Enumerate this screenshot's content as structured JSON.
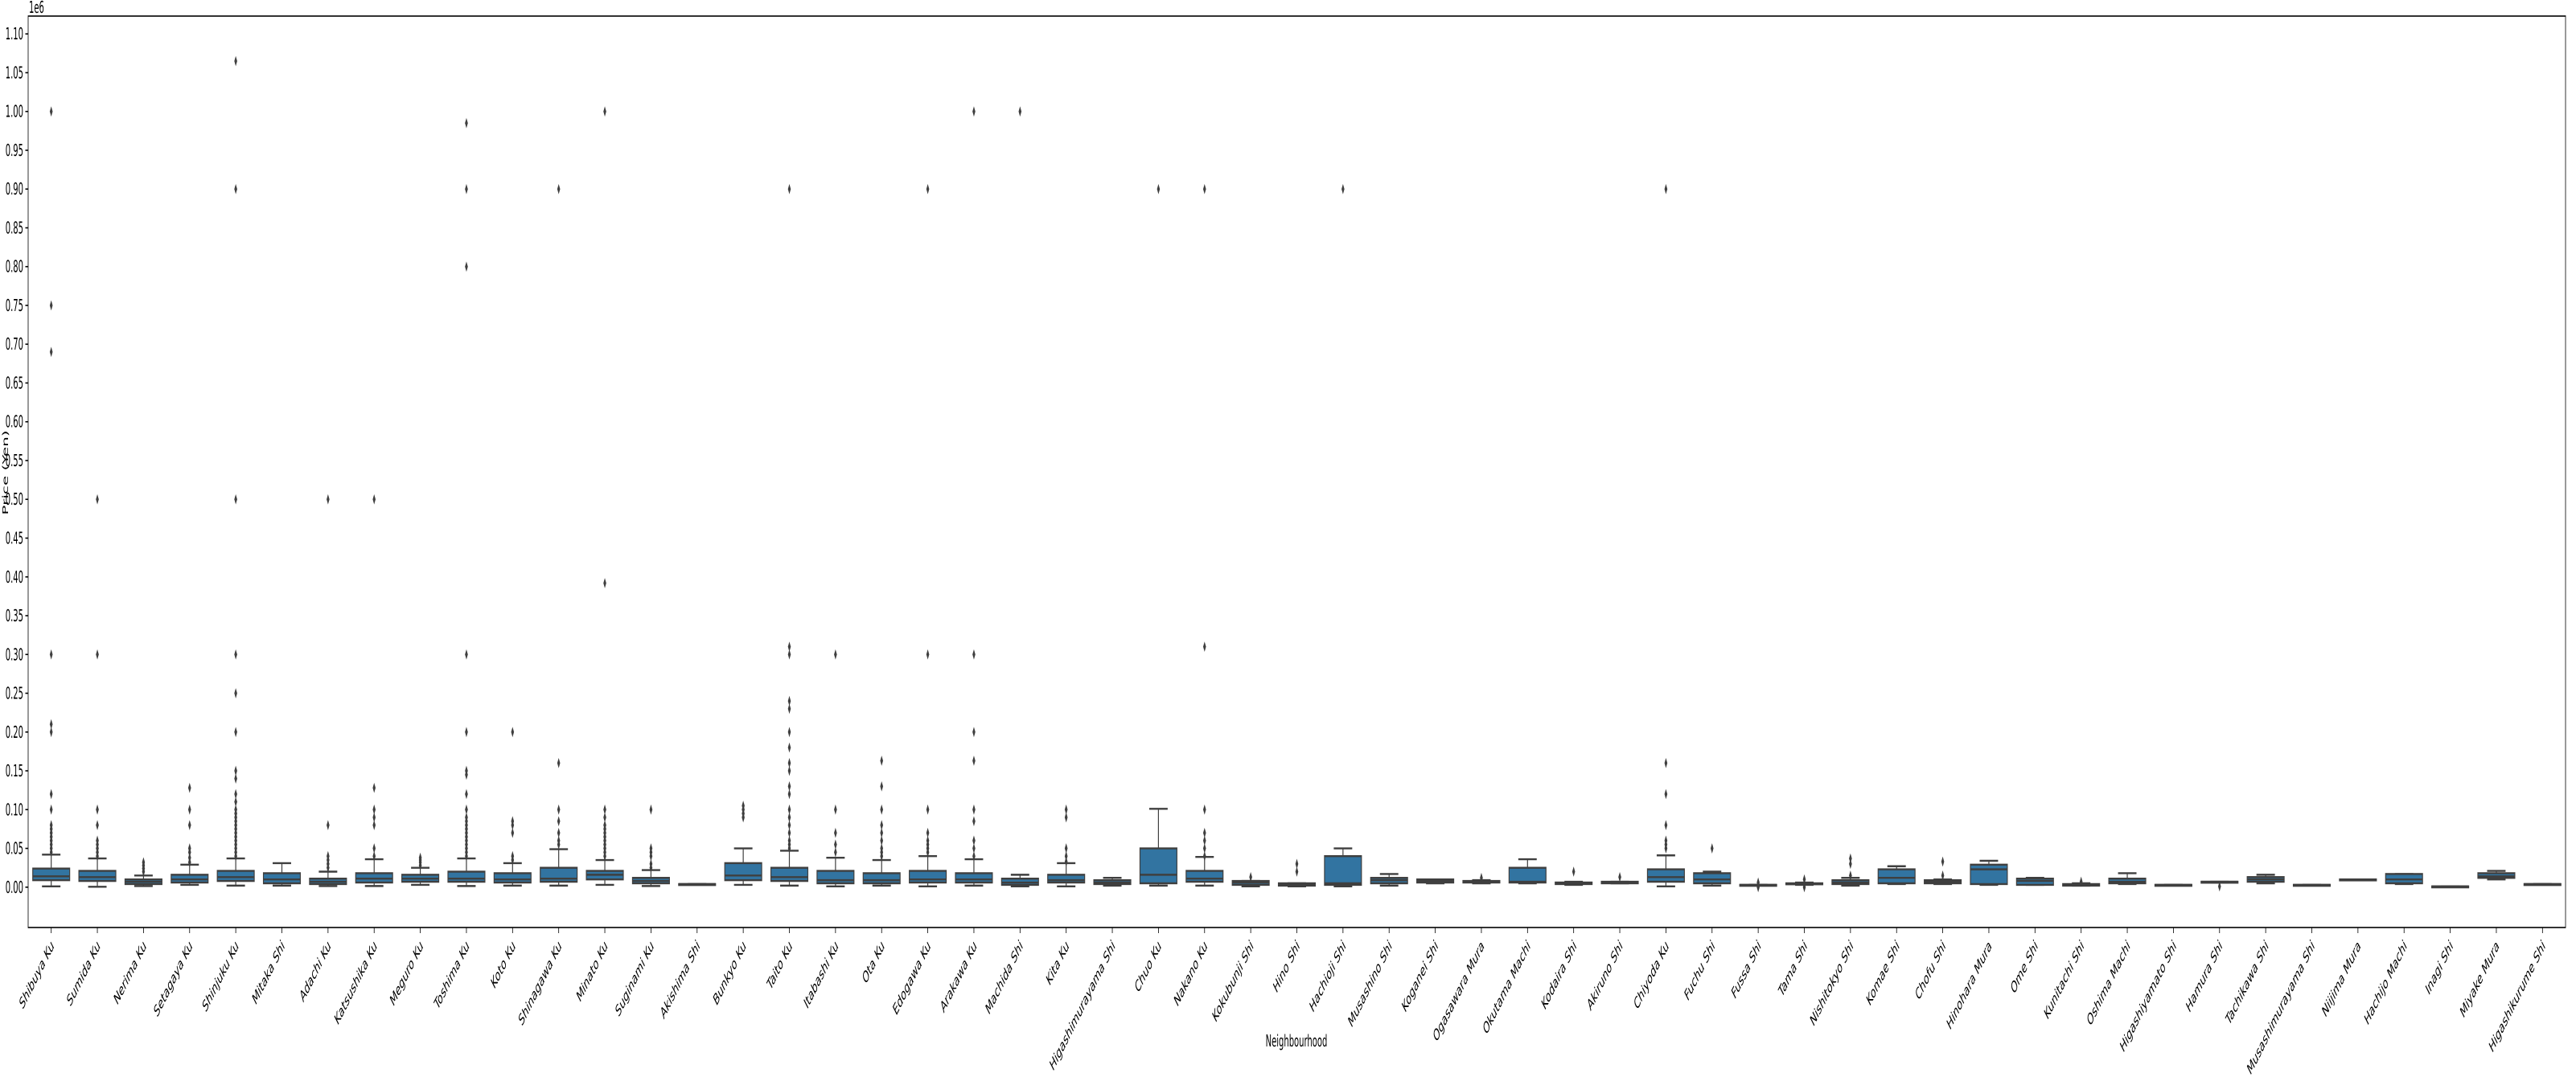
{
  "chart_data": {
    "type": "boxplot",
    "title": "",
    "xlabel": "Neighbourhood",
    "ylabel": "Price (Yen)",
    "y_offset_label": "1e6",
    "ylim": [
      -52000,
      1123000
    ],
    "yticks": [
      0,
      50000,
      100000,
      150000,
      200000,
      250000,
      300000,
      350000,
      400000,
      450000,
      500000,
      550000,
      600000,
      650000,
      700000,
      750000,
      800000,
      850000,
      900000,
      950000,
      1000000,
      1050000,
      1100000
    ],
    "ytick_labels": [
      "0.00",
      "0.05",
      "0.10",
      "0.15",
      "0.20",
      "0.25",
      "0.30",
      "0.35",
      "0.40",
      "0.45",
      "0.50",
      "0.55",
      "0.60",
      "0.65",
      "0.70",
      "0.75",
      "0.80",
      "0.85",
      "0.90",
      "0.95",
      "1.00",
      "1.05",
      "1.10"
    ],
    "grid": false,
    "colors": {
      "box": "#3274a1",
      "edge": "#3f3f3f"
    },
    "categories": [
      "Shibuya Ku",
      "Sumida Ku",
      "Nerima Ku",
      "Setagaya Ku",
      "Shinjuku Ku",
      "Mitaka Shi",
      "Adachi Ku",
      "Katsushika Ku",
      "Meguro Ku",
      "Toshima Ku",
      "Koto Ku",
      "Shinagawa Ku",
      "Minato Ku",
      "Suginami Ku",
      "Akishima Shi",
      "Bunkyo Ku",
      "Taito Ku",
      "Itabashi Ku",
      "Ota Ku",
      "Edogawa Ku",
      "Arakawa Ku",
      "Machida Shi",
      "Kita Ku",
      "Higashimurayama Shi",
      "Chuo Ku",
      "Nakano Ku",
      "Kokubunji Shi",
      "Hino Shi",
      "Hachioji Shi",
      "Musashino Shi",
      "Koganei Shi",
      "Ogasawara Mura",
      "Okutama Machi",
      "Kodaira Shi",
      "Akiruno Shi",
      "Chiyoda Ku",
      "Fuchu Shi",
      "Fussa Shi",
      "Tama Shi",
      "Nishitokyo Shi",
      "Komae Shi",
      "Chofu Shi",
      "Hinohara Mura",
      "Ome Shi",
      "Kunitachi Shi",
      "Oshima Machi",
      "Higashiyamato Shi",
      "Hamura Shi",
      "Tachikawa Shi",
      "Musashimurayama Shi",
      "Niijima Mura",
      "Hachijo Machi",
      "Inagi Shi",
      "Miyake Mura",
      "Higashikurume Shi"
    ],
    "boxes": [
      {
        "low": 1000,
        "q1": 9000,
        "median": 14000,
        "q3": 24000,
        "high": 42000,
        "outliers": [
          45000,
          50000,
          55000,
          60000,
          65000,
          70000,
          75000,
          80000,
          100000,
          120000,
          200000,
          210000,
          300000,
          690000,
          750000,
          1000000
        ]
      },
      {
        "low": 500,
        "q1": 8000,
        "median": 13000,
        "q3": 21000,
        "high": 37000,
        "outliers": [
          40000,
          45000,
          50000,
          55000,
          60000,
          80000,
          100000,
          300000,
          500000
        ]
      },
      {
        "low": 1500,
        "q1": 4000,
        "median": 7000,
        "q3": 10000,
        "high": 15000,
        "outliers": [
          20000,
          24000,
          28000,
          32000
        ]
      },
      {
        "low": 3000,
        "q1": 6000,
        "median": 10000,
        "q3": 16000,
        "high": 29000,
        "outliers": [
          32000,
          38000,
          45000,
          50000,
          80000,
          100000,
          128000
        ]
      },
      {
        "low": 2000,
        "q1": 8000,
        "median": 13000,
        "q3": 21000,
        "high": 37000,
        "outliers": [
          40000,
          45000,
          50000,
          55000,
          60000,
          65000,
          70000,
          75000,
          80000,
          85000,
          90000,
          95000,
          100000,
          110000,
          120000,
          140000,
          150000,
          200000,
          250000,
          300000,
          500000,
          900000,
          1065000
        ]
      },
      {
        "low": 2000,
        "q1": 5000,
        "median": 10000,
        "q3": 18000,
        "high": 31000,
        "outliers": []
      },
      {
        "low": 1500,
        "q1": 4000,
        "median": 7000,
        "q3": 11000,
        "high": 20000,
        "outliers": [
          25000,
          30000,
          35000,
          40000,
          80000,
          500000
        ]
      },
      {
        "low": 1500,
        "q1": 6000,
        "median": 11000,
        "q3": 18000,
        "high": 36000,
        "outliers": [
          40000,
          50000,
          80000,
          90000,
          100000,
          128000,
          500000
        ]
      },
      {
        "low": 3000,
        "q1": 7000,
        "median": 11000,
        "q3": 16000,
        "high": 25000,
        "outliers": [
          28000,
          32000,
          35000,
          38000
        ]
      },
      {
        "low": 1500,
        "q1": 7000,
        "median": 11000,
        "q3": 20000,
        "high": 37000,
        "outliers": [
          40000,
          45000,
          50000,
          55000,
          60000,
          65000,
          70000,
          75000,
          80000,
          85000,
          90000,
          100000,
          120000,
          145000,
          150000,
          200000,
          300000,
          800000,
          900000,
          985000
        ]
      },
      {
        "low": 2000,
        "q1": 6000,
        "median": 10000,
        "q3": 18000,
        "high": 31000,
        "outliers": [
          35000,
          40000,
          70000,
          80000,
          85000,
          200000
        ]
      },
      {
        "low": 2000,
        "q1": 7000,
        "median": 11000,
        "q3": 25000,
        "high": 49000,
        "outliers": [
          55000,
          60000,
          70000,
          85000,
          100000,
          160000,
          900000
        ]
      },
      {
        "low": 3000,
        "q1": 10000,
        "median": 16000,
        "q3": 21000,
        "high": 35000,
        "outliers": [
          40000,
          45000,
          50000,
          55000,
          60000,
          65000,
          70000,
          75000,
          80000,
          90000,
          100000,
          392000,
          1000000
        ]
      },
      {
        "low": 1500,
        "q1": 5000,
        "median": 8000,
        "q3": 12000,
        "high": 22000,
        "outliers": [
          25000,
          30000,
          40000,
          45000,
          50000,
          100000
        ]
      },
      {
        "low": 4000,
        "q1": 4000,
        "median": 4000,
        "q3": 4000,
        "high": 4000,
        "outliers": []
      },
      {
        "low": 3000,
        "q1": 9000,
        "median": 15000,
        "q3": 31000,
        "high": 50000,
        "outliers": [
          90000,
          95000,
          100000,
          105000
        ]
      },
      {
        "low": 2000,
        "q1": 8000,
        "median": 13000,
        "q3": 25000,
        "high": 47000,
        "outliers": [
          50000,
          55000,
          60000,
          70000,
          80000,
          90000,
          100000,
          120000,
          130000,
          150000,
          160000,
          180000,
          200000,
          230000,
          240000,
          300000,
          310000,
          900000
        ]
      },
      {
        "low": 1000,
        "q1": 5000,
        "median": 9000,
        "q3": 21000,
        "high": 38000,
        "outliers": [
          45000,
          55000,
          70000,
          100000,
          300000
        ]
      },
      {
        "low": 2000,
        "q1": 5000,
        "median": 9000,
        "q3": 18000,
        "high": 35000,
        "outliers": [
          40000,
          45000,
          50000,
          60000,
          70000,
          80000,
          100000,
          130000,
          163000
        ]
      },
      {
        "low": 1000,
        "q1": 6000,
        "median": 10000,
        "q3": 21000,
        "high": 40000,
        "outliers": [
          45000,
          50000,
          55000,
          60000,
          70000,
          100000,
          300000,
          900000
        ]
      },
      {
        "low": 2000,
        "q1": 6000,
        "median": 10000,
        "q3": 18000,
        "high": 36000,
        "outliers": [
          40000,
          50000,
          60000,
          85000,
          100000,
          163000,
          200000,
          300000,
          1000000
        ]
      },
      {
        "low": 1000,
        "q1": 3000,
        "median": 6000,
        "q3": 11000,
        "high": 16000,
        "outliers": [
          1000000
        ]
      },
      {
        "low": 1000,
        "q1": 6000,
        "median": 9000,
        "q3": 16000,
        "high": 31000,
        "outliers": [
          33000,
          40000,
          50000,
          90000,
          100000
        ]
      },
      {
        "low": 2000,
        "q1": 4000,
        "median": 6000,
        "q3": 9000,
        "high": 12000,
        "outliers": []
      },
      {
        "low": 2000,
        "q1": 5000,
        "median": 16000,
        "q3": 50000,
        "high": 101000,
        "outliers": [
          900000
        ]
      },
      {
        "low": 2000,
        "q1": 7000,
        "median": 11000,
        "q3": 21000,
        "high": 39000,
        "outliers": [
          40000,
          50000,
          60000,
          70000,
          100000,
          310000,
          900000
        ]
      },
      {
        "low": 1000,
        "q1": 3000,
        "median": 6000,
        "q3": 8000,
        "high": 8000,
        "outliers": [
          13000
        ]
      },
      {
        "low": 1000,
        "q1": 2000,
        "median": 3000,
        "q3": 5000,
        "high": 5000,
        "outliers": [
          20000,
          30000
        ]
      },
      {
        "low": 1000,
        "q1": 3000,
        "median": 5000,
        "q3": 40000,
        "high": 50000,
        "outliers": [
          900000
        ]
      },
      {
        "low": 2000,
        "q1": 5000,
        "median": 9000,
        "q3": 12000,
        "high": 17000,
        "outliers": []
      },
      {
        "low": 5000,
        "q1": 6000,
        "median": 8000,
        "q3": 10000,
        "high": 10000,
        "outliers": []
      },
      {
        "low": 5000,
        "q1": 6000,
        "median": 7000,
        "q3": 8000,
        "high": 9000,
        "outliers": [
          12000
        ]
      },
      {
        "low": 5000,
        "q1": 6000,
        "median": 7000,
        "q3": 25000,
        "high": 36000,
        "outliers": []
      },
      {
        "low": 3000,
        "q1": 4000,
        "median": 5000,
        "q3": 6000,
        "high": 7000,
        "outliers": [
          20000
        ]
      },
      {
        "low": 5000,
        "q1": 5000,
        "median": 6000,
        "q3": 7000,
        "high": 7000,
        "outliers": [
          13000
        ]
      },
      {
        "low": 1000,
        "q1": 7000,
        "median": 13000,
        "q3": 23000,
        "high": 41000,
        "outliers": [
          50000,
          55000,
          60000,
          80000,
          120000,
          160000,
          900000
        ]
      },
      {
        "low": 2000,
        "q1": 5000,
        "median": 10000,
        "q3": 18000,
        "high": 20000,
        "outliers": [
          50000
        ]
      },
      {
        "low": 3000,
        "q1": 3000,
        "median": 3000,
        "q3": 3000,
        "high": 3000,
        "outliers": [
          0,
          6000
        ]
      },
      {
        "low": 3000,
        "q1": 4000,
        "median": 4000,
        "q3": 5000,
        "high": 6000,
        "outliers": [
          0,
          10000
        ]
      },
      {
        "low": 2000,
        "q1": 4000,
        "median": 6000,
        "q3": 9000,
        "high": 12000,
        "outliers": [
          15000,
          30000,
          37000
        ]
      },
      {
        "low": 4000,
        "q1": 5000,
        "median": 12000,
        "q3": 23000,
        "high": 27000,
        "outliers": []
      },
      {
        "low": 4000,
        "q1": 5000,
        "median": 7000,
        "q3": 9000,
        "high": 10000,
        "outliers": [
          15000,
          33000
        ]
      },
      {
        "low": 3000,
        "q1": 4000,
        "median": 23000,
        "q3": 29000,
        "high": 34000,
        "outliers": []
      },
      {
        "low": 3000,
        "q1": 3000,
        "median": 8000,
        "q3": 11000,
        "high": 12000,
        "outliers": []
      },
      {
        "low": 2000,
        "q1": 2000,
        "median": 3000,
        "q3": 4000,
        "high": 5000,
        "outliers": [
          7000
        ]
      },
      {
        "low": 4000,
        "q1": 5000,
        "median": 7000,
        "q3": 11000,
        "high": 18000,
        "outliers": []
      },
      {
        "low": 3000,
        "q1": 3000,
        "median": 3000,
        "q3": 3000,
        "high": 3000,
        "outliers": []
      },
      {
        "low": 6000,
        "q1": 6000,
        "median": 7000,
        "q3": 7000,
        "high": 7000,
        "outliers": [
          1000
        ]
      },
      {
        "low": 5000,
        "q1": 7000,
        "median": 10000,
        "q3": 13000,
        "high": 16000,
        "outliers": []
      },
      {
        "low": 3000,
        "q1": 3000,
        "median": 3000,
        "q3": 3000,
        "high": 3000,
        "outliers": []
      },
      {
        "low": 10000,
        "q1": 10000,
        "median": 10000,
        "q3": 10000,
        "high": 10000,
        "outliers": []
      },
      {
        "low": 4000,
        "q1": 5000,
        "median": 10000,
        "q3": 17000,
        "high": 17000,
        "outliers": []
      },
      {
        "low": 1000,
        "q1": 1000,
        "median": 1000,
        "q3": 1000,
        "high": 1000,
        "outliers": []
      },
      {
        "low": 10000,
        "q1": 12000,
        "median": 14000,
        "q3": 18000,
        "high": 21000,
        "outliers": []
      },
      {
        "low": 4000,
        "q1": 4000,
        "median": 4000,
        "q3": 4000,
        "high": 4000,
        "outliers": []
      }
    ]
  }
}
